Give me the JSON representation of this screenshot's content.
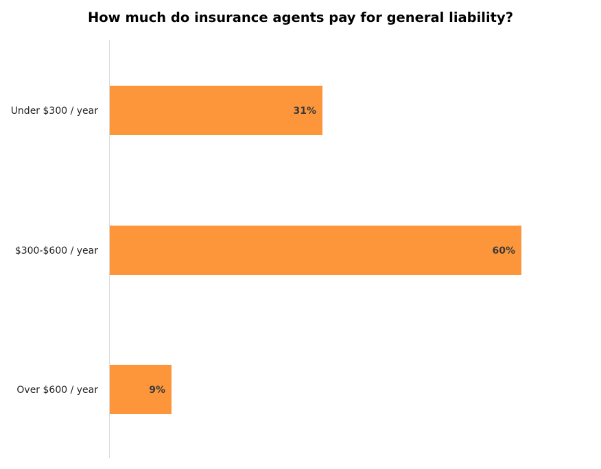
{
  "chart_data": {
    "type": "bar",
    "orientation": "horizontal",
    "title": "How much do insurance agents pay for general liability?",
    "categories": [
      "Under $300 / year",
      "$300-$600 / year",
      "Over $600 / year"
    ],
    "values": [
      31,
      60,
      9
    ],
    "data_labels": [
      "31%",
      "60%",
      "9%"
    ],
    "xlim": [
      0,
      70
    ],
    "grid": false,
    "legend": "none",
    "bar_color": "#FD963B"
  }
}
